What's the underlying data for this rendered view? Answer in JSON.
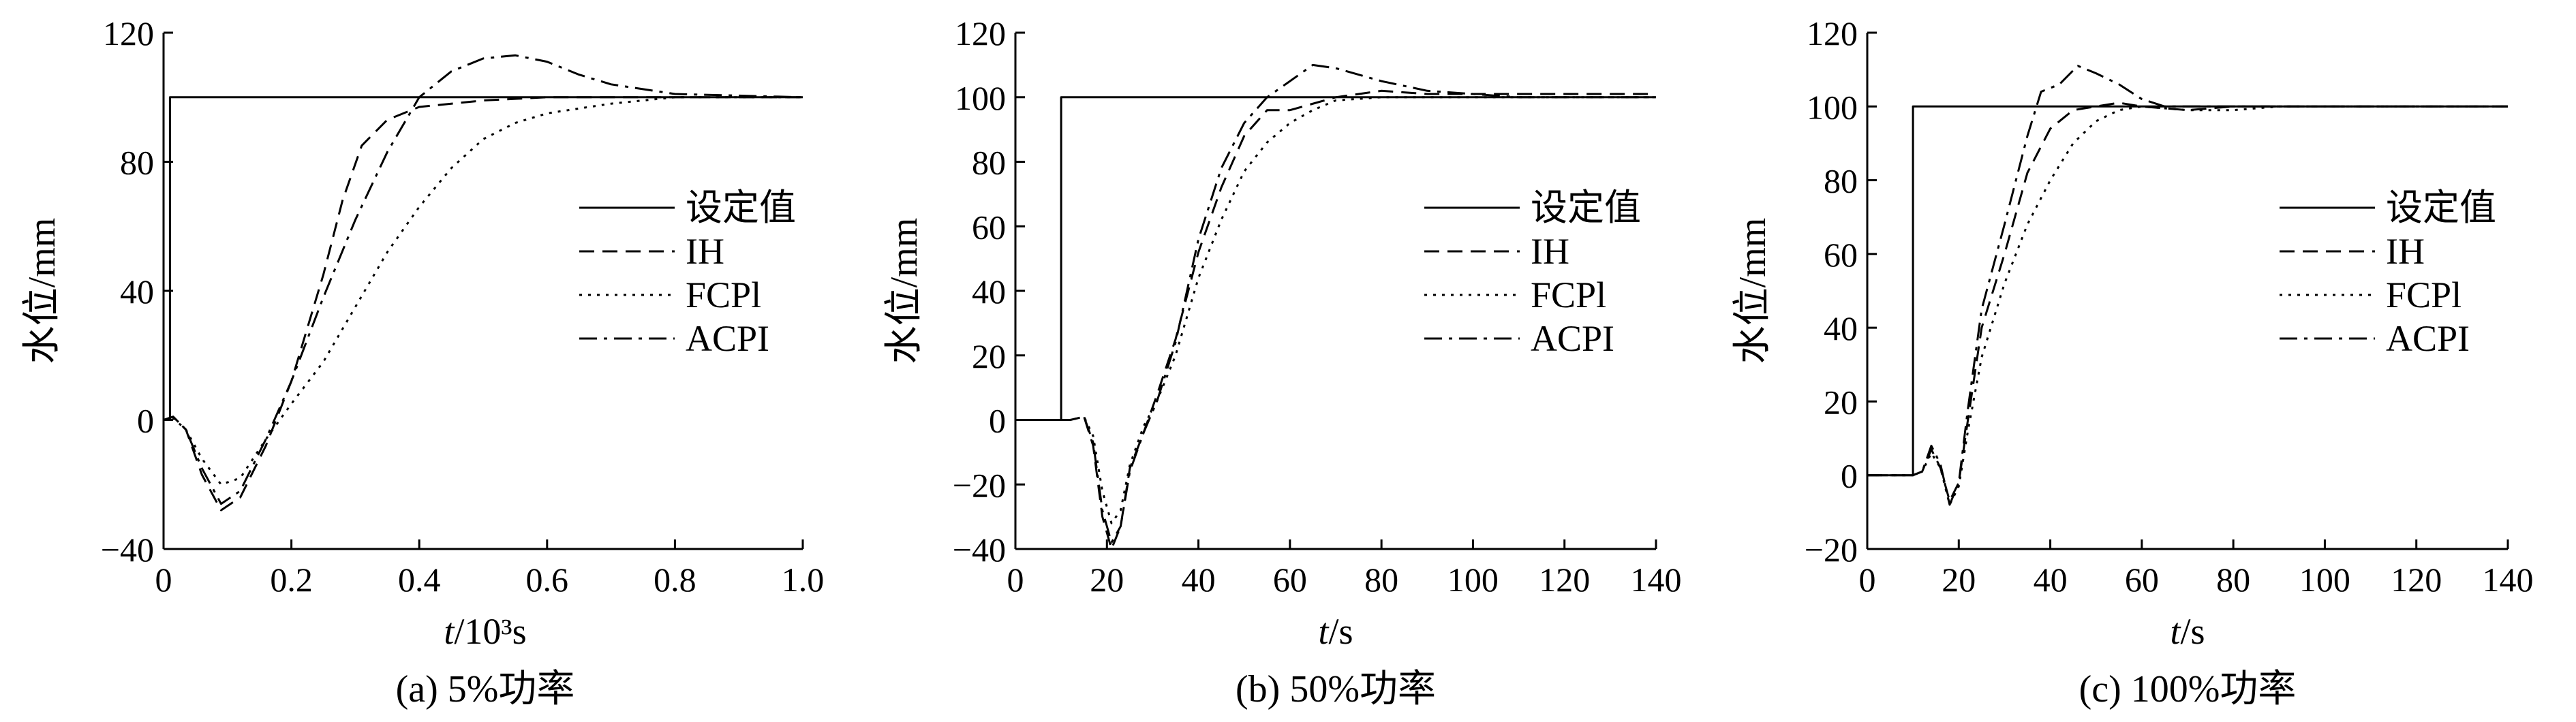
{
  "colors": {
    "line": "#000000",
    "background": "#ffffff"
  },
  "chart_data": [
    {
      "type": "line",
      "caption": "(a) 5%功率",
      "xlabel_italic": "t",
      "xlabel_unit": "/10³s",
      "ylabel": "水位/mm",
      "xlim": [
        0,
        1.0
      ],
      "ylim": [
        -40,
        120
      ],
      "xticks": [
        "0",
        "0.2",
        "0.4",
        "0.6",
        "0.8",
        "1.0"
      ],
      "xtick_values": [
        0,
        0.2,
        0.4,
        0.6,
        0.8,
        1.0
      ],
      "yticks": [
        "−40",
        "0",
        "40",
        "80",
        "120"
      ],
      "ytick_values": [
        -40,
        0,
        40,
        80,
        120
      ],
      "legend_position": "right",
      "series": [
        {
          "name": "设定值",
          "style": "solid",
          "points": [
            [
              0,
              0
            ],
            [
              0.01,
              0
            ],
            [
              0.01,
              100
            ],
            [
              1.0,
              100
            ]
          ]
        },
        {
          "name": "IH",
          "style": "dashed",
          "points": [
            [
              0,
              0
            ],
            [
              0.015,
              1
            ],
            [
              0.035,
              -3
            ],
            [
              0.06,
              -17
            ],
            [
              0.09,
              -28
            ],
            [
              0.12,
              -24
            ],
            [
              0.16,
              -8
            ],
            [
              0.2,
              12
            ],
            [
              0.25,
              45
            ],
            [
              0.28,
              68
            ],
            [
              0.31,
              85
            ],
            [
              0.35,
              93
            ],
            [
              0.4,
              97
            ],
            [
              0.5,
              99
            ],
            [
              0.6,
              100
            ],
            [
              0.8,
              100
            ],
            [
              1.0,
              100
            ]
          ]
        },
        {
          "name": "FCPl",
          "style": "dotted",
          "points": [
            [
              0,
              0
            ],
            [
              0.015,
              0.5
            ],
            [
              0.035,
              -3
            ],
            [
              0.06,
              -12
            ],
            [
              0.09,
              -20
            ],
            [
              0.12,
              -18
            ],
            [
              0.16,
              -6
            ],
            [
              0.2,
              5
            ],
            [
              0.25,
              18
            ],
            [
              0.3,
              35
            ],
            [
              0.35,
              52
            ],
            [
              0.4,
              66
            ],
            [
              0.45,
              78
            ],
            [
              0.5,
              87
            ],
            [
              0.55,
              92
            ],
            [
              0.6,
              95
            ],
            [
              0.7,
              98
            ],
            [
              0.8,
              100
            ],
            [
              1.0,
              100
            ]
          ]
        },
        {
          "name": "ACPI",
          "style": "dashdot",
          "points": [
            [
              0,
              0
            ],
            [
              0.015,
              1
            ],
            [
              0.035,
              -3
            ],
            [
              0.06,
              -15
            ],
            [
              0.09,
              -26
            ],
            [
              0.12,
              -22
            ],
            [
              0.16,
              -6
            ],
            [
              0.2,
              12
            ],
            [
              0.25,
              38
            ],
            [
              0.3,
              62
            ],
            [
              0.35,
              83
            ],
            [
              0.4,
              100
            ],
            [
              0.45,
              108
            ],
            [
              0.5,
              112
            ],
            [
              0.55,
              113
            ],
            [
              0.6,
              111
            ],
            [
              0.65,
              107
            ],
            [
              0.7,
              104
            ],
            [
              0.8,
              101
            ],
            [
              1.0,
              100
            ]
          ]
        }
      ]
    },
    {
      "type": "line",
      "caption": "(b) 50%功率",
      "xlabel_italic": "t",
      "xlabel_unit": "/s",
      "ylabel": "水位/mm",
      "xlim": [
        0,
        140
      ],
      "ylim": [
        -40,
        120
      ],
      "xticks": [
        "0",
        "20",
        "40",
        "60",
        "80",
        "100",
        "120",
        "140"
      ],
      "xtick_values": [
        0,
        20,
        40,
        60,
        80,
        100,
        120,
        140
      ],
      "yticks": [
        "−40",
        "−20",
        "0",
        "20",
        "40",
        "60",
        "80",
        "100",
        "120"
      ],
      "ytick_values": [
        -40,
        -20,
        0,
        20,
        40,
        60,
        80,
        100,
        120
      ],
      "legend_position": "right",
      "series": [
        {
          "name": "设定值",
          "style": "solid",
          "points": [
            [
              0,
              0
            ],
            [
              10,
              0
            ],
            [
              10,
              100
            ],
            [
              140,
              100
            ]
          ]
        },
        {
          "name": "IH",
          "style": "dashed",
          "points": [
            [
              0,
              0
            ],
            [
              10,
              0
            ],
            [
              12,
              0
            ],
            [
              15,
              1
            ],
            [
              17,
              -8
            ],
            [
              19,
              -30
            ],
            [
              21,
              -40
            ],
            [
              23,
              -33
            ],
            [
              25,
              -15
            ],
            [
              28,
              -4
            ],
            [
              31,
              8
            ],
            [
              35,
              25
            ],
            [
              40,
              52
            ],
            [
              45,
              72
            ],
            [
              50,
              88
            ],
            [
              55,
              96
            ],
            [
              60,
              96
            ],
            [
              70,
              100
            ],
            [
              80,
              102
            ],
            [
              90,
              101
            ],
            [
              100,
              101
            ],
            [
              140,
              101
            ]
          ]
        },
        {
          "name": "FCPl",
          "style": "dotted",
          "points": [
            [
              0,
              0
            ],
            [
              10,
              0
            ],
            [
              12,
              0
            ],
            [
              15,
              1
            ],
            [
              17,
              -5
            ],
            [
              19,
              -22
            ],
            [
              21,
              -32
            ],
            [
              23,
              -28
            ],
            [
              25,
              -14
            ],
            [
              28,
              -2
            ],
            [
              31,
              6
            ],
            [
              35,
              20
            ],
            [
              40,
              44
            ],
            [
              45,
              62
            ],
            [
              50,
              77
            ],
            [
              55,
              86
            ],
            [
              60,
              92
            ],
            [
              65,
              96
            ],
            [
              70,
              99
            ],
            [
              80,
              100
            ],
            [
              100,
              100
            ],
            [
              140,
              100
            ]
          ]
        },
        {
          "name": "ACPI",
          "style": "dashdot",
          "points": [
            [
              0,
              0
            ],
            [
              10,
              0
            ],
            [
              12,
              0
            ],
            [
              15,
              1
            ],
            [
              17,
              -7
            ],
            [
              19,
              -28
            ],
            [
              21,
              -38
            ],
            [
              23,
              -33
            ],
            [
              25,
              -16
            ],
            [
              28,
              -4
            ],
            [
              31,
              6
            ],
            [
              35,
              24
            ],
            [
              40,
              56
            ],
            [
              45,
              78
            ],
            [
              50,
              92
            ],
            [
              55,
              100
            ],
            [
              60,
              105
            ],
            [
              65,
              110
            ],
            [
              70,
              109
            ],
            [
              75,
              107
            ],
            [
              80,
              105
            ],
            [
              90,
              102
            ],
            [
              100,
              101
            ],
            [
              110,
              100
            ],
            [
              140,
              100
            ]
          ]
        }
      ]
    },
    {
      "type": "line",
      "caption": "(c) 100%功率",
      "xlabel_italic": "t",
      "xlabel_unit": "/s",
      "ylabel": "水位/mm",
      "xlim": [
        0,
        140
      ],
      "ylim": [
        -20,
        120
      ],
      "xticks": [
        "0",
        "20",
        "40",
        "60",
        "80",
        "100",
        "120",
        "140"
      ],
      "xtick_values": [
        0,
        20,
        40,
        60,
        80,
        100,
        120,
        140
      ],
      "yticks": [
        "−20",
        "0",
        "20",
        "40",
        "60",
        "80",
        "100",
        "120"
      ],
      "ytick_values": [
        -20,
        0,
        20,
        40,
        60,
        80,
        100,
        120
      ],
      "legend_position": "right",
      "series": [
        {
          "name": "设定值",
          "style": "solid",
          "points": [
            [
              0,
              0
            ],
            [
              10,
              0
            ],
            [
              10,
              100
            ],
            [
              140,
              100
            ]
          ]
        },
        {
          "name": "IH",
          "style": "dashed",
          "points": [
            [
              0,
              0
            ],
            [
              10,
              0
            ],
            [
              12,
              1
            ],
            [
              14,
              7
            ],
            [
              16,
              2
            ],
            [
              18,
              -7
            ],
            [
              20,
              -2
            ],
            [
              22,
              15
            ],
            [
              25,
              40
            ],
            [
              30,
              60
            ],
            [
              35,
              82
            ],
            [
              40,
              94
            ],
            [
              45,
              99
            ],
            [
              50,
              100
            ],
            [
              55,
              101
            ],
            [
              60,
              100
            ],
            [
              70,
              99
            ],
            [
              80,
              100
            ],
            [
              140,
              100
            ]
          ]
        },
        {
          "name": "FCPl",
          "style": "dotted",
          "points": [
            [
              0,
              0
            ],
            [
              10,
              0
            ],
            [
              12,
              1
            ],
            [
              14,
              6
            ],
            [
              16,
              2
            ],
            [
              18,
              -8
            ],
            [
              20,
              -3
            ],
            [
              22,
              12
            ],
            [
              25,
              32
            ],
            [
              30,
              52
            ],
            [
              35,
              68
            ],
            [
              40,
              80
            ],
            [
              45,
              90
            ],
            [
              50,
              96
            ],
            [
              55,
              99
            ],
            [
              60,
              100
            ],
            [
              70,
              99
            ],
            [
              80,
              99
            ],
            [
              90,
              100
            ],
            [
              140,
              100
            ]
          ]
        },
        {
          "name": "ACPI",
          "style": "dashdot",
          "points": [
            [
              0,
              0
            ],
            [
              10,
              0
            ],
            [
              12,
              1
            ],
            [
              14,
              8
            ],
            [
              16,
              3
            ],
            [
              18,
              -8
            ],
            [
              20,
              -2
            ],
            [
              22,
              18
            ],
            [
              25,
              45
            ],
            [
              30,
              68
            ],
            [
              35,
              92
            ],
            [
              38,
              104
            ],
            [
              42,
              106
            ],
            [
              46,
              111
            ],
            [
              50,
              109
            ],
            [
              55,
              106
            ],
            [
              60,
              102
            ],
            [
              65,
              100
            ],
            [
              70,
              100
            ],
            [
              80,
              100
            ],
            [
              140,
              100
            ]
          ]
        }
      ]
    }
  ]
}
